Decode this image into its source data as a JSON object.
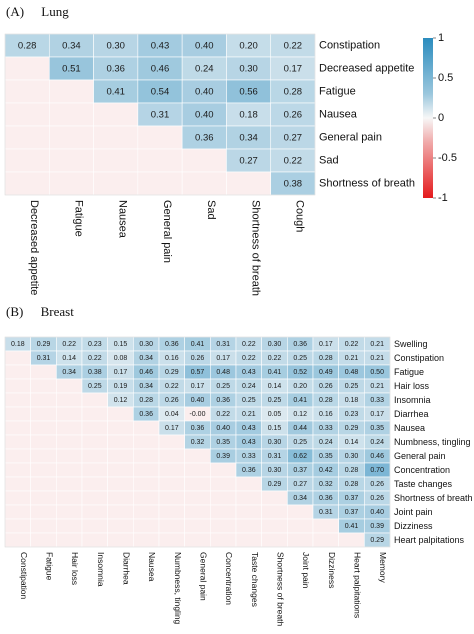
{
  "chart_data": [
    {
      "type": "heatmap",
      "panel_label": "(A)",
      "title": "Lung",
      "row_labels": [
        "Constipation",
        "Decreased appetite",
        "Fatigue",
        "Nausea",
        "General pain",
        "Sad",
        "Shortness of breath"
      ],
      "col_labels": [
        "Decreased appetite",
        "Fatigue",
        "Nausea",
        "General pain",
        "Sad",
        "Shortness of breath",
        "Cough"
      ],
      "values": [
        [
          0.28,
          0.34,
          0.3,
          0.43,
          0.4,
          0.2,
          0.22
        ],
        [
          null,
          0.51,
          0.36,
          0.46,
          0.24,
          0.3,
          0.17
        ],
        [
          null,
          null,
          0.41,
          0.54,
          0.4,
          0.56,
          0.28
        ],
        [
          null,
          null,
          null,
          0.31,
          0.4,
          0.18,
          0.26
        ],
        [
          null,
          null,
          null,
          null,
          0.36,
          0.34,
          0.27
        ],
        [
          null,
          null,
          null,
          null,
          null,
          0.27,
          0.22
        ],
        [
          null,
          null,
          null,
          null,
          null,
          null,
          0.38
        ]
      ],
      "value_labels": [
        [
          "0.28",
          "0.34",
          "0.30",
          "0.43",
          "0.40",
          "0.20",
          "0.22"
        ],
        [
          "",
          "0.51",
          "0.36",
          "0.46",
          "0.24",
          "0.30",
          "0.17"
        ],
        [
          "",
          "",
          "0.41",
          "0.54",
          "0.40",
          "0.56",
          "0.28"
        ],
        [
          "",
          "",
          "",
          "0.31",
          "0.40",
          "0.18",
          "0.26"
        ],
        [
          "",
          "",
          "",
          "",
          "0.36",
          "0.34",
          "0.27"
        ],
        [
          "",
          "",
          "",
          "",
          "",
          "0.27",
          "0.22"
        ],
        [
          "",
          "",
          "",
          "",
          "",
          "",
          "0.38"
        ]
      ],
      "legend": {
        "range": [
          -1,
          1
        ],
        "ticks": [
          1,
          0.5,
          0,
          -0.5,
          -1
        ],
        "tick_labels": [
          "1",
          "0.5",
          "0",
          "-0.5",
          "-1"
        ],
        "colors": {
          "positive": "#2b8cbe",
          "zero": "#f7f7f7",
          "negative": "#e41a1c"
        }
      }
    },
    {
      "type": "heatmap",
      "panel_label": "(B)",
      "title": "Breast",
      "row_labels": [
        "Swelling",
        "Constipation",
        "Fatigue",
        "Hair loss",
        "Insomnia",
        "Diarrhea",
        "Nausea",
        "Numbness, tingling",
        "General pain",
        "Concentration",
        "Taste changes",
        "Shortness of breath",
        "Joint pain",
        "Dizziness",
        "Heart palpitations"
      ],
      "col_labels": [
        "Constipation",
        "Fatigue",
        "Hair loss",
        "Insomnia",
        "Diarrhea",
        "Nausea",
        "Numbness, tingling",
        "General pain",
        "Concentration",
        "Taste changes",
        "Shortness of breath",
        "Joint pain",
        "Dizziness",
        "Heart palpitations",
        "Memory"
      ],
      "values": [
        [
          0.18,
          0.29,
          0.22,
          0.23,
          0.15,
          0.3,
          0.36,
          0.41,
          0.31,
          0.22,
          0.3,
          0.36,
          0.17,
          0.22,
          0.21
        ],
        [
          null,
          0.31,
          0.14,
          0.22,
          0.08,
          0.34,
          0.16,
          0.26,
          0.17,
          0.22,
          0.22,
          0.25,
          0.28,
          0.21,
          0.21
        ],
        [
          null,
          null,
          0.34,
          0.38,
          0.17,
          0.46,
          0.29,
          0.57,
          0.48,
          0.43,
          0.41,
          0.52,
          0.49,
          0.48,
          0.5
        ],
        [
          null,
          null,
          null,
          0.25,
          0.19,
          0.34,
          0.22,
          0.17,
          0.25,
          0.24,
          0.14,
          0.2,
          0.26,
          0.25,
          0.21
        ],
        [
          null,
          null,
          null,
          null,
          0.12,
          0.28,
          0.26,
          0.4,
          0.36,
          0.25,
          0.25,
          0.41,
          0.28,
          0.18,
          0.33
        ],
        [
          null,
          null,
          null,
          null,
          null,
          0.36,
          0.04,
          -0.002,
          0.22,
          0.21,
          0.05,
          0.12,
          0.16,
          0.23,
          0.17
        ],
        [
          null,
          null,
          null,
          null,
          null,
          null,
          0.17,
          0.36,
          0.4,
          0.43,
          0.15,
          0.44,
          0.33,
          0.29,
          0.35
        ],
        [
          null,
          null,
          null,
          null,
          null,
          null,
          null,
          0.32,
          0.35,
          0.43,
          0.3,
          0.25,
          0.24,
          0.14,
          0.24
        ],
        [
          null,
          null,
          null,
          null,
          null,
          null,
          null,
          null,
          0.39,
          0.33,
          0.31,
          0.62,
          0.35,
          0.3,
          0.46
        ],
        [
          null,
          null,
          null,
          null,
          null,
          null,
          null,
          null,
          null,
          0.36,
          0.3,
          0.37,
          0.42,
          0.28,
          0.7
        ],
        [
          null,
          null,
          null,
          null,
          null,
          null,
          null,
          null,
          null,
          null,
          0.29,
          0.27,
          0.32,
          0.28,
          0.26
        ],
        [
          null,
          null,
          null,
          null,
          null,
          null,
          null,
          null,
          null,
          null,
          null,
          0.34,
          0.36,
          0.37,
          0.26
        ],
        [
          null,
          null,
          null,
          null,
          null,
          null,
          null,
          null,
          null,
          null,
          null,
          null,
          0.31,
          0.37,
          0.4
        ],
        [
          null,
          null,
          null,
          null,
          null,
          null,
          null,
          null,
          null,
          null,
          null,
          null,
          null,
          0.41,
          0.39
        ],
        [
          null,
          null,
          null,
          null,
          null,
          null,
          null,
          null,
          null,
          null,
          null,
          null,
          null,
          null,
          0.29
        ]
      ],
      "value_labels": [
        [
          "0.18",
          "0.29",
          "0.22",
          "0.23",
          "0.15",
          "0.30",
          "0.36",
          "0.41",
          "0.31",
          "0.22",
          "0.30",
          "0.36",
          "0.17",
          "0.22",
          "0.21"
        ],
        [
          "",
          "0.31",
          "0.14",
          "0.22",
          "0.08",
          "0.34",
          "0.16",
          "0.26",
          "0.17",
          "0.22",
          "0.22",
          "0.25",
          "0.28",
          "0.21",
          "0.21"
        ],
        [
          "",
          "",
          "0.34",
          "0.38",
          "0.17",
          "0.46",
          "0.29",
          "0.57",
          "0.48",
          "0.43",
          "0.41",
          "0.52",
          "0.49",
          "0.48",
          "0.50"
        ],
        [
          "",
          "",
          "",
          "0.25",
          "0.19",
          "0.34",
          "0.22",
          "0.17",
          "0.25",
          "0.24",
          "0.14",
          "0.20",
          "0.26",
          "0.25",
          "0.21"
        ],
        [
          "",
          "",
          "",
          "",
          "0.12",
          "0.28",
          "0.26",
          "0.40",
          "0.36",
          "0.25",
          "0.25",
          "0.41",
          "0.28",
          "0.18",
          "0.33"
        ],
        [
          "",
          "",
          "",
          "",
          "",
          "0.36",
          "0.04",
          "-0.00",
          "0.22",
          "0.21",
          "0.05",
          "0.12",
          "0.16",
          "0.23",
          "0.17"
        ],
        [
          "",
          "",
          "",
          "",
          "",
          "",
          "0.17",
          "0.36",
          "0.40",
          "0.43",
          "0.15",
          "0.44",
          "0.33",
          "0.29",
          "0.35"
        ],
        [
          "",
          "",
          "",
          "",
          "",
          "",
          "",
          "0.32",
          "0.35",
          "0.43",
          "0.30",
          "0.25",
          "0.24",
          "0.14",
          "0.24"
        ],
        [
          "",
          "",
          "",
          "",
          "",
          "",
          "",
          "",
          "0.39",
          "0.33",
          "0.31",
          "0.62",
          "0.35",
          "0.30",
          "0.46"
        ],
        [
          "",
          "",
          "",
          "",
          "",
          "",
          "",
          "",
          "",
          "0.36",
          "0.30",
          "0.37",
          "0.42",
          "0.28",
          "0.70"
        ],
        [
          "",
          "",
          "",
          "",
          "",
          "",
          "",
          "",
          "",
          "",
          "0.29",
          "0.27",
          "0.32",
          "0.28",
          "0.26"
        ],
        [
          "",
          "",
          "",
          "",
          "",
          "",
          "",
          "",
          "",
          "",
          "",
          "0.34",
          "0.36",
          "0.37",
          "0.26"
        ],
        [
          "",
          "",
          "",
          "",
          "",
          "",
          "",
          "",
          "",
          "",
          "",
          "",
          "0.31",
          "0.37",
          "0.40"
        ],
        [
          "",
          "",
          "",
          "",
          "",
          "",
          "",
          "",
          "",
          "",
          "",
          "",
          "",
          "0.41",
          "0.39"
        ],
        [
          "",
          "",
          "",
          "",
          "",
          "",
          "",
          "",
          "",
          "",
          "",
          "",
          "",
          "",
          "0.29"
        ]
      ]
    }
  ]
}
